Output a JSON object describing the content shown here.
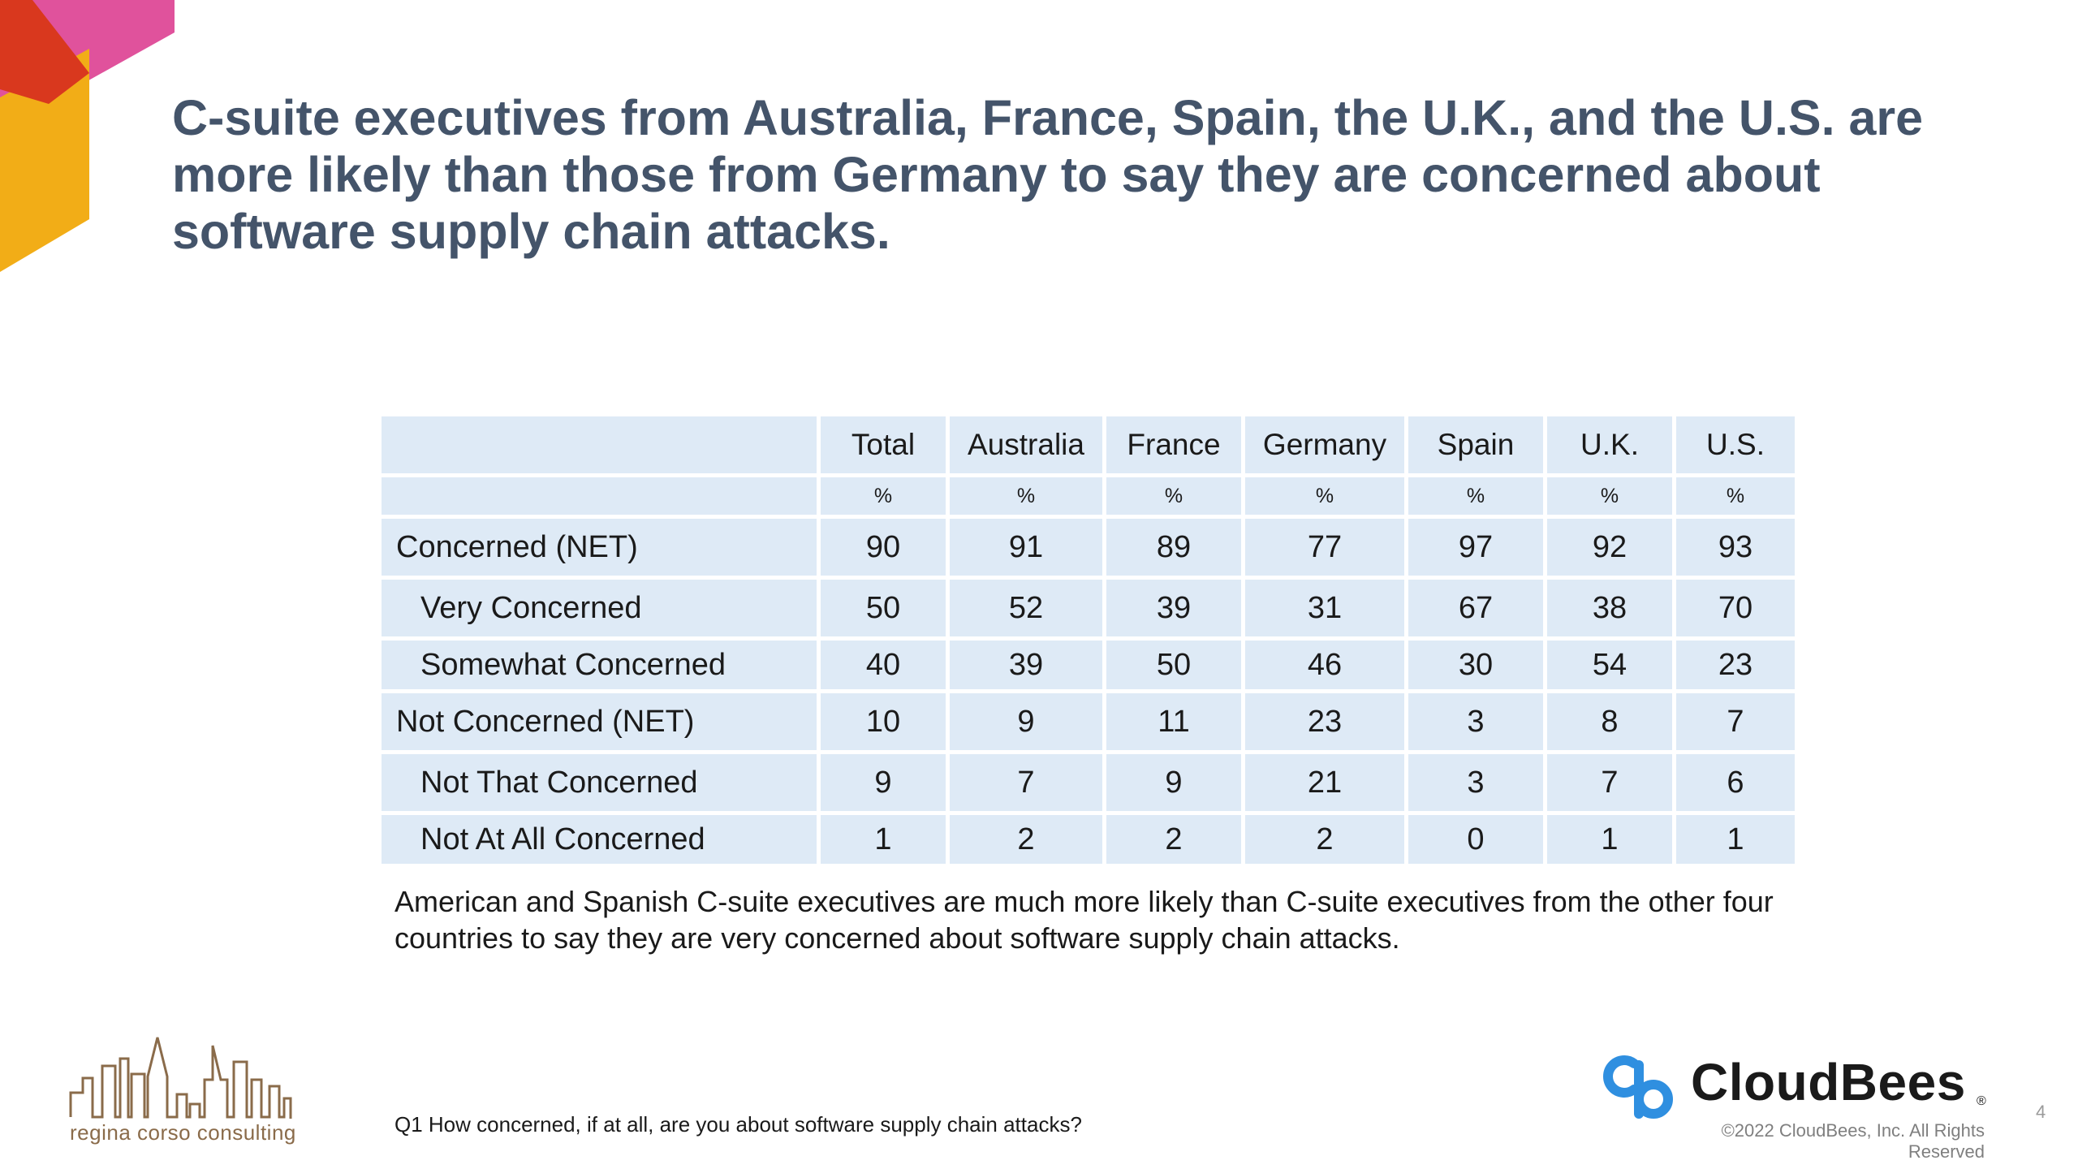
{
  "title": "C-suite executives from Australia, France, Spain, the U.K., and the U.S. are more likely than those from Germany to say they are concerned about software supply chain attacks.",
  "table": {
    "columns": [
      "Total",
      "Australia",
      "France",
      "Germany",
      "Spain",
      "U.K.",
      "U.S."
    ],
    "units": [
      "%",
      "%",
      "%",
      "%",
      "%",
      "%",
      "%"
    ],
    "rows": [
      {
        "label": "Concerned (NET)",
        "values": [
          "90",
          "91",
          "89",
          "77",
          "97",
          "92",
          "93"
        ]
      },
      {
        "label": "Very Concerned",
        "values": [
          "50",
          "52",
          "39",
          "31",
          "67",
          "38",
          "70"
        ]
      },
      {
        "label": "Somewhat Concerned",
        "values": [
          "40",
          "39",
          "50",
          "46",
          "30",
          "54",
          "23"
        ]
      },
      {
        "label": "Not Concerned (NET)",
        "values": [
          "10",
          "9",
          "11",
          "23",
          "3",
          "8",
          "7"
        ]
      },
      {
        "label": "Not That Concerned",
        "values": [
          "9",
          "7",
          "9",
          "21",
          "3",
          "7",
          "6"
        ]
      },
      {
        "label": "Not At All Concerned",
        "values": [
          "1",
          "2",
          "2",
          "2",
          "0",
          "1",
          "1"
        ]
      }
    ]
  },
  "summary": "American and Spanish C-suite executives are much more likely than C-suite executives from the other four countries to say they are very concerned about software supply chain attacks.",
  "footnote": "Q1 How concerned, if at all, are you about software supply chain attacks?",
  "logos": {
    "left_brand": "regina corso consulting",
    "right_brand": "CloudBees",
    "right_brand_mark": "®"
  },
  "copyright": "©2022 CloudBees, Inc. All Rights Reserved",
  "page_number": "4",
  "colors": {
    "title": "#44546a",
    "table_fill": "#deeaf6",
    "accent_pink": "#e0529c",
    "accent_red": "#d9381e",
    "accent_yellow": "#f2ad17",
    "cloudbees_blue": "#2f8fe0"
  }
}
